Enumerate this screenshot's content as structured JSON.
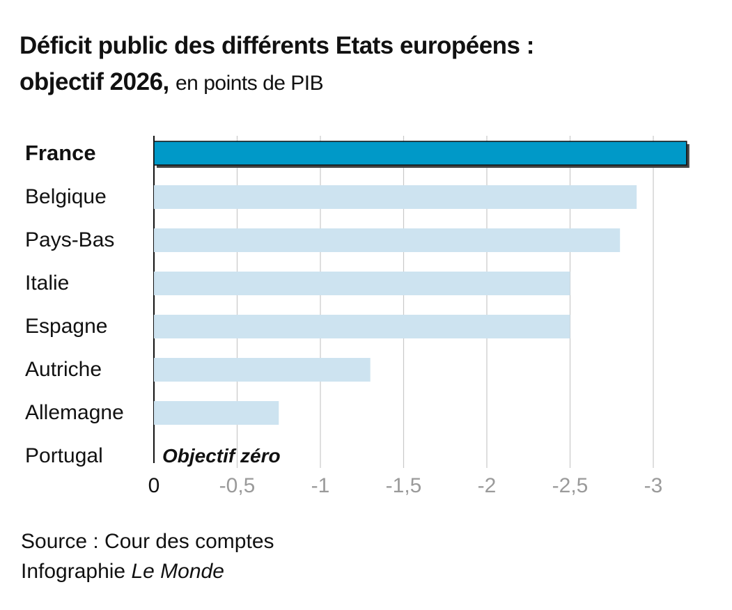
{
  "header": {
    "title_bold_line1": "Déficit public des différents Etats européens :",
    "title_bold_line2": "objectif 2026,",
    "title_light": "en points de PIB"
  },
  "footer": {
    "source": "Source : Cour des comptes",
    "credit_prefix": "Infographie",
    "credit_name": "Le Monde"
  },
  "colors": {
    "highlight": "#0099c8",
    "bar": "#cde3f0",
    "grid": "#c8c8c8",
    "tick": "#9a9a9a",
    "axis": "#111111"
  },
  "chart_data": {
    "type": "bar",
    "orientation": "horizontal",
    "title": "Déficit public des différents Etats européens : objectif 2026, en points de PIB",
    "xlabel": "",
    "ylabel": "",
    "categories": [
      "France",
      "Belgique",
      "Pays-Bas",
      "Italie",
      "Espagne",
      "Autriche",
      "Allemagne",
      "Portugal"
    ],
    "values": [
      -3.2,
      -2.9,
      -2.8,
      -2.5,
      -2.5,
      -1.3,
      -0.75,
      0
    ],
    "highlight": "France",
    "xlim": [
      0,
      -3.2
    ],
    "xticks": [
      0,
      -0.5,
      -1,
      -1.5,
      -2,
      -2.5,
      -3
    ],
    "xtick_labels": [
      "0",
      "-0,5",
      "-1",
      "-1,5",
      "-2",
      "-2,5",
      "-3"
    ],
    "annotation": {
      "category": "Portugal",
      "text": "Objectif zéro"
    },
    "grid": true
  }
}
